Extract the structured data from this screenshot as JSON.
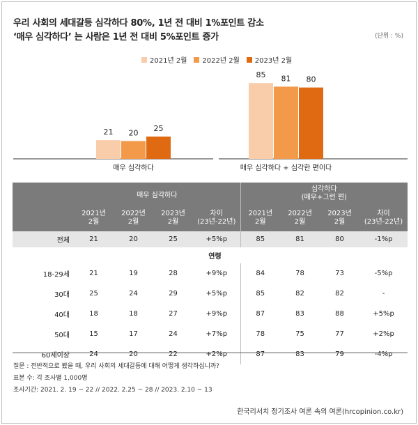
{
  "header": {
    "title_line1": "우리 사회의 세대갈등 심각하다 80%, 1년 전 대비 1%포인트 감소",
    "title_line2": "‘매우 심각하다’ 는 사람은 1년 전 대비 5%포인트 증가",
    "unit": "(단위 : %)"
  },
  "colors": {
    "y2021": "#f9ccaa",
    "y2022": "#f39a4a",
    "y2023": "#e06a12"
  },
  "chart_data": {
    "type": "bar",
    "title": "우리 사회의 세대갈등 심각하다 80%, 1년 전 대비 1%포인트 감소",
    "categories": [
      "매우 심각하다",
      "매우 심각하다 + 심각한 편이다"
    ],
    "series": [
      {
        "name": "2021년 2월",
        "values": [
          21,
          85
        ]
      },
      {
        "name": "2022년 2월",
        "values": [
          20,
          81
        ]
      },
      {
        "name": "2023년 2월",
        "values": [
          25,
          80
        ]
      }
    ],
    "unit": "%",
    "ylim": [
      0,
      100
    ],
    "legend_position": "top"
  },
  "table": {
    "group_headers": [
      "매우 심각하다",
      "심각하다\n(매우+그런 편)"
    ],
    "col_headers": [
      "2021년\n2월",
      "2022년\n2월",
      "2023년\n2월",
      "차이\n(23년-22년)",
      "2021년\n2월",
      "2022년\n2월",
      "2023년\n2월",
      "차이\n(23년-22년)"
    ],
    "total": {
      "label": "전체",
      "values": [
        "21",
        "20",
        "25",
        "+5%p",
        "85",
        "81",
        "80",
        "-1%p"
      ]
    },
    "group_label": "연령",
    "rows": [
      {
        "label": "18-29세",
        "values": [
          "21",
          "19",
          "28",
          "+9%p",
          "84",
          "78",
          "73",
          "-5%p"
        ]
      },
      {
        "label": "30대",
        "values": [
          "25",
          "24",
          "29",
          "+5%p",
          "85",
          "82",
          "82",
          "-"
        ]
      },
      {
        "label": "40대",
        "values": [
          "18",
          "18",
          "27",
          "+9%p",
          "87",
          "83",
          "88",
          "+5%p"
        ]
      },
      {
        "label": "50대",
        "values": [
          "15",
          "17",
          "24",
          "+7%p",
          "78",
          "75",
          "77",
          "+2%p"
        ]
      },
      {
        "label": "60세이상",
        "values": [
          "24",
          "20",
          "22",
          "+2%p",
          "87",
          "83",
          "79",
          "-4%p"
        ]
      }
    ]
  },
  "notes": {
    "question": "질문 : 전반적으로 봤을 때, 우리 사회의 세대갈등에 대해 어떻게 생각하십니까?",
    "sample": "표본 수: 각 조사별 1,000명",
    "period": "조사기간: 2021. 2. 19 ~ 22  // 2022. 2.25 ~ 28 // 2023. 2.10 ~ 13",
    "source": "한국리서치 정기조사 여론 속의 여론(hrcopinion.co.kr)"
  }
}
